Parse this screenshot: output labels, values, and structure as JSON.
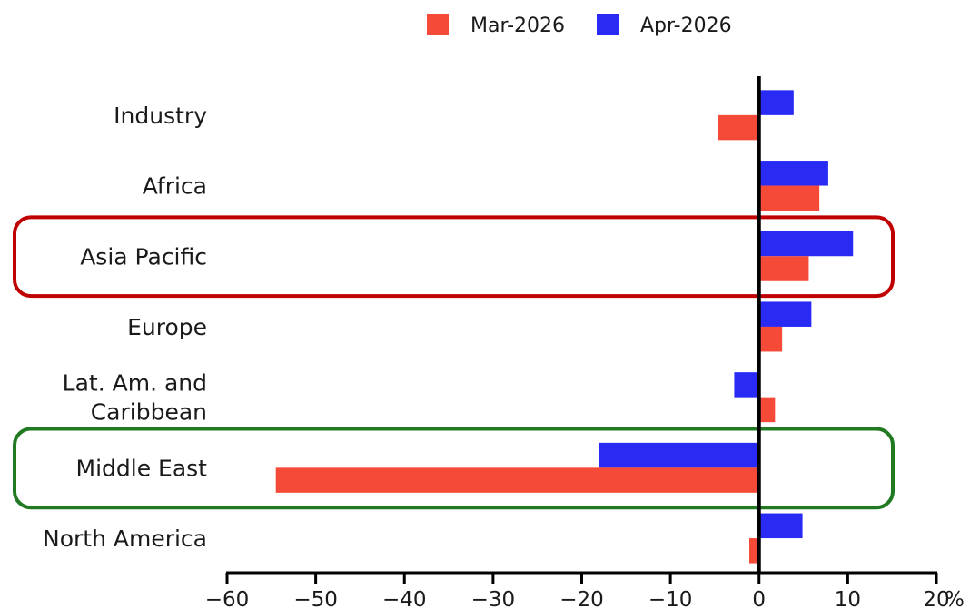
{
  "chart_data": {
    "type": "bar",
    "orientation": "horizontal",
    "categories": [
      [
        "Industry"
      ],
      [
        "Africa"
      ],
      [
        "Asia Pacific"
      ],
      [
        "Europe"
      ],
      [
        "Lat. Am. and",
        "Caribbean"
      ],
      [
        "Middle East"
      ],
      [
        "North America"
      ]
    ],
    "series": [
      {
        "name": "Apr-2026",
        "color": "#2a2af5",
        "values": [
          3.9,
          7.8,
          10.6,
          5.9,
          -2.8,
          -18.1,
          4.9
        ]
      },
      {
        "name": "Mar-2026",
        "color": "#f44a37",
        "values": [
          -4.6,
          6.8,
          5.6,
          2.6,
          1.8,
          -54.5,
          -1.1
        ]
      }
    ],
    "legend_order": [
      "Mar-2026",
      "Apr-2026"
    ],
    "legend_position": "top-center",
    "xlim": [
      -60,
      20
    ],
    "xticks": [
      -60,
      -50,
      -40,
      -30,
      -20,
      -10,
      0,
      10,
      20
    ],
    "x_unit": "%",
    "grid": false,
    "highlights": [
      {
        "category": "Asia Pacific",
        "color": "#c00000"
      },
      {
        "category": "Middle East",
        "color": "#217a21"
      }
    ]
  }
}
